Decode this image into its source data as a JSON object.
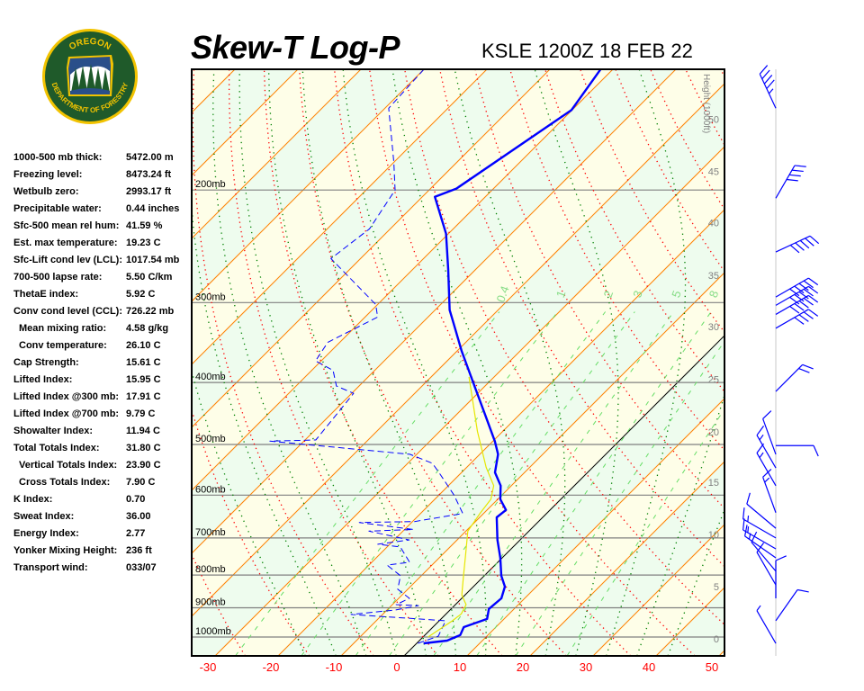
{
  "header": {
    "title": "Skew-T Log-P",
    "station": "KSLE 1200Z 18 FEB 22"
  },
  "logo": {
    "top_text": "OREGON",
    "bottom_text": "DEPARTMENT OF FORESTRY",
    "colors": {
      "ring": "#1f5a2a",
      "border": "#f2c300",
      "text": "#f2c300"
    }
  },
  "stats": [
    {
      "label": "1000-500 mb thick:",
      "value": "5472.00 m",
      "indent": false
    },
    {
      "label": "Freezing level:",
      "value": "8473.24 ft",
      "indent": false
    },
    {
      "label": "Wetbulb zero:",
      "value": "2993.17 ft",
      "indent": false
    },
    {
      "label": "Precipitable water:",
      "value": "0.44 inches",
      "indent": false
    },
    {
      "label": "Sfc-500 mean rel hum:",
      "value": "41.59 %",
      "indent": false
    },
    {
      "label": "Est. max temperature:",
      "value": "19.23 C",
      "indent": false
    },
    {
      "label": "Sfc-Lift cond lev (LCL):",
      "value": "1017.54 mb",
      "indent": false
    },
    {
      "label": "700-500 lapse rate:",
      "value": "5.50 C/km",
      "indent": false
    },
    {
      "label": "ThetaE index:",
      "value": "5.92 C",
      "indent": false
    },
    {
      "label": "Conv cond level (CCL):",
      "value": "726.22 mb",
      "indent": false
    },
    {
      "label": "Mean mixing ratio:",
      "value": "4.58 g/kg",
      "indent": true
    },
    {
      "label": "Conv temperature:",
      "value": "26.10 C",
      "indent": true
    },
    {
      "label": "Cap Strength:",
      "value": "15.61 C",
      "indent": false
    },
    {
      "label": "Lifted Index:",
      "value": "15.95 C",
      "indent": false
    },
    {
      "label": "Lifted Index @300 mb:",
      "value": "17.91 C",
      "indent": false
    },
    {
      "label": "Lifted Index @700 mb:",
      "value": "9.79 C",
      "indent": false
    },
    {
      "label": "Showalter Index:",
      "value": "11.94 C",
      "indent": false
    },
    {
      "label": "Total Totals Index:",
      "value": "31.80 C",
      "indent": false
    },
    {
      "label": "Vertical Totals Index:",
      "value": "23.90 C",
      "indent": true
    },
    {
      "label": "Cross Totals Index:",
      "value": "7.90 C",
      "indent": true
    },
    {
      "label": "K Index:",
      "value": "0.70",
      "indent": false
    },
    {
      "label": "Sweat Index:",
      "value": "36.00",
      "indent": false
    },
    {
      "label": "Energy Index:",
      "value": "2.77",
      "indent": false
    },
    {
      "label": "Yonker Mixing Height:",
      "value": "236 ft",
      "indent": false
    },
    {
      "label": "Transport wind:",
      "value": "033/07",
      "indent": false
    }
  ],
  "chart_data": {
    "type": "skew-t",
    "title": "Skew-T Log-P",
    "subtitle": "KSLE 1200Z 18 FEB 22",
    "pressure_range_mb": [
      1070,
      129
    ],
    "pressure_lines_mb": [
      200,
      300,
      400,
      500,
      600,
      700,
      800,
      900,
      1000
    ],
    "pressure_labels": [
      "200mb",
      "300mb",
      "400mb",
      "500mb",
      "600mb",
      "700mb",
      "800mb",
      "900mb",
      "1000mb"
    ],
    "temperature_ticks_c": [
      -30,
      -20,
      -10,
      0,
      10,
      20,
      30,
      40,
      50
    ],
    "temperature_tick_labels": [
      "-30",
      "-20",
      "-10",
      "0",
      "10",
      "20",
      "30",
      "40",
      "50"
    ],
    "height_axis_label": "Height (1000ft)",
    "height_ticks": [
      {
        "label": "0",
        "p": 1006
      },
      {
        "label": "5",
        "p": 834
      },
      {
        "label": "10",
        "p": 691
      },
      {
        "label": "15",
        "p": 573
      },
      {
        "label": "20",
        "p": 478
      },
      {
        "label": "25",
        "p": 395
      },
      {
        "label": "30",
        "p": 327
      },
      {
        "label": "35",
        "p": 272
      },
      {
        "label": "40",
        "p": 225
      },
      {
        "label": "45",
        "p": 187
      },
      {
        "label": "50",
        "p": 155
      }
    ],
    "mixing_ratio_lines_gkg": [
      0.4,
      1,
      2,
      3,
      5,
      8,
      12,
      20
    ],
    "mixing_ratio_labels": [
      "0.4",
      "1",
      "2",
      "3",
      "5",
      "8"
    ],
    "isotherm_step_c": 10,
    "highlighted_isotherm_c": 0,
    "colors": {
      "temperature": "#0000ff",
      "dewpoint": "#0000ff",
      "parcel": "#e6e600",
      "isotherm": "#ff8000",
      "dry_adiabat": "#ff0000",
      "moist_adiabat": "#008000",
      "mixing_ratio": "#66dd66",
      "band_a": "#fefee8",
      "band_b": "#eefcee",
      "pressure_line": "#808080",
      "temp_tick": "#ff0000",
      "height_tick": "#808080",
      "wind": "#0000ff"
    },
    "series": [
      {
        "key": "temperature",
        "style": "solid-thick",
        "points": [
          [
            1023,
            1.1
          ],
          [
            1013,
            4.4
          ],
          [
            993,
            5.6
          ],
          [
            965,
            4.9
          ],
          [
            937,
            7.3
          ],
          [
            904,
            6.0
          ],
          [
            870,
            6.3
          ],
          [
            834,
            5.0
          ],
          [
            802,
            2.7
          ],
          [
            752,
            -0.3
          ],
          [
            705,
            -3.6
          ],
          [
            650,
            -7.3
          ],
          [
            633,
            -7.0
          ],
          [
            609,
            -9.6
          ],
          [
            580,
            -11.7
          ],
          [
            553,
            -14.7
          ],
          [
            518,
            -17.1
          ],
          [
            494,
            -19.7
          ],
          [
            448,
            -25.6
          ],
          [
            409,
            -31.1
          ],
          [
            357,
            -39.3
          ],
          [
            319,
            -45.7
          ],
          [
            308,
            -47.7
          ],
          [
            266,
            -54.4
          ],
          [
            234,
            -60.4
          ],
          [
            205,
            -68.0
          ],
          [
            199,
            -65.9
          ],
          [
            150,
            -60.1
          ],
          [
            129,
            -62.0
          ]
        ]
      },
      {
        "key": "dewpoint",
        "style": "dashed",
        "points": [
          [
            1023,
            0.2
          ],
          [
            997,
            2.3
          ],
          [
            943,
            1.0
          ],
          [
            937,
            -3.6
          ],
          [
            922,
            -15.0
          ],
          [
            907,
            -8.6
          ],
          [
            893,
            -5.7
          ],
          [
            890,
            -9.4
          ],
          [
            870,
            -8.3
          ],
          [
            842,
            -11.6
          ],
          [
            802,
            -13.3
          ],
          [
            772,
            -17.1
          ],
          [
            764,
            -14.0
          ],
          [
            723,
            -17.9
          ],
          [
            716,
            -21.9
          ],
          [
            705,
            -17.6
          ],
          [
            683,
            -25.4
          ],
          [
            679,
            -18.6
          ],
          [
            662,
            -28.3
          ],
          [
            660,
            -19.7
          ],
          [
            641,
            -13.3
          ],
          [
            600,
            -17.6
          ],
          [
            553,
            -23.6
          ],
          [
            535,
            -26.1
          ],
          [
            518,
            -31.1
          ],
          [
            494,
            -55.4
          ],
          [
            492,
            -48.3
          ],
          [
            416,
            -49.7
          ],
          [
            405,
            -53.6
          ],
          [
            383,
            -56.6
          ],
          [
            370,
            -60.9
          ],
          [
            346,
            -61.9
          ],
          [
            316,
            -58.0
          ],
          [
            302,
            -60.3
          ],
          [
            256,
            -74.7
          ],
          [
            230,
            -73.3
          ],
          [
            200,
            -75.4
          ],
          [
            181,
            -80.0
          ],
          [
            149,
            -89.4
          ],
          [
            129,
            -90.0
          ]
        ]
      },
      {
        "key": "parcel",
        "style": "solid-thin",
        "points": [
          [
            1000,
            0.8
          ],
          [
            943,
            2.1
          ],
          [
            920,
            2.4
          ],
          [
            890,
            1.7
          ],
          [
            860,
            -0.5
          ],
          [
            802,
            -3.3
          ],
          [
            740,
            -6.5
          ],
          [
            683,
            -9.7
          ],
          [
            640,
            -10.6
          ],
          [
            609,
            -11.1
          ],
          [
            580,
            -12.8
          ],
          [
            543,
            -16.9
          ],
          [
            477,
            -24.0
          ],
          [
            392,
            -34.0
          ]
        ]
      }
    ],
    "winds": [
      {
        "p": 149,
        "dir": 335,
        "kt": 45
      },
      {
        "p": 206,
        "dir": 30,
        "kt": 40
      },
      {
        "p": 250,
        "dir": 65,
        "kt": 50
      },
      {
        "p": 294,
        "dir": 60,
        "kt": 50
      },
      {
        "p": 303,
        "dir": 60,
        "kt": 50
      },
      {
        "p": 313,
        "dir": 60,
        "kt": 50
      },
      {
        "p": 329,
        "dir": 60,
        "kt": 40
      },
      {
        "p": 413,
        "dir": 45,
        "kt": 20
      },
      {
        "p": 502,
        "dir": 90,
        "kt": 10
      },
      {
        "p": 518,
        "dir": 340,
        "kt": 10
      },
      {
        "p": 544,
        "dir": 330,
        "kt": 15
      },
      {
        "p": 580,
        "dir": 330,
        "kt": 15
      },
      {
        "p": 639,
        "dir": 340,
        "kt": 15
      },
      {
        "p": 676,
        "dir": 310,
        "kt": 10
      },
      {
        "p": 700,
        "dir": 300,
        "kt": 15
      },
      {
        "p": 728,
        "dir": 300,
        "kt": 15
      },
      {
        "p": 752,
        "dir": 305,
        "kt": 15
      },
      {
        "p": 789,
        "dir": 320,
        "kt": 10
      },
      {
        "p": 829,
        "dir": 330,
        "kt": 10
      },
      {
        "p": 870,
        "dir": 0,
        "kt": 10
      },
      {
        "p": 943,
        "dir": 35,
        "kt": 10
      },
      {
        "p": 1023,
        "dir": 330,
        "kt": 7
      }
    ]
  }
}
